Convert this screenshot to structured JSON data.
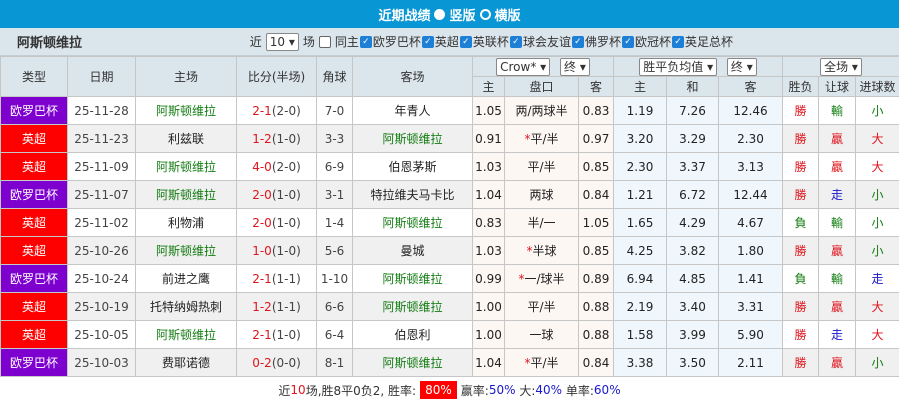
{
  "header": {
    "title": "近期战绩",
    "options": [
      {
        "label": "竖版",
        "selected": true
      },
      {
        "label": "横版",
        "selected": false
      }
    ]
  },
  "filter": {
    "team": "阿斯顿维拉",
    "near_label": "近",
    "count": "10",
    "unit": "场",
    "same_host": "同主",
    "competitions": [
      "欧罗巴杯",
      "英超",
      "英联杯",
      "球会友谊",
      "佛罗杯",
      "欧冠杯",
      "英足总杯"
    ]
  },
  "columns": {
    "type": "类型",
    "date": "日期",
    "home": "主场",
    "score": "比分(半场)",
    "corner": "角球",
    "away": "客场",
    "company": "Crow*",
    "final1": "终",
    "avg": "胜平负均值",
    "final2": "终",
    "scope": "全场",
    "h": "主",
    "line": "盘口",
    "a": "客",
    "h2": "主",
    "d": "和",
    "a2": "客",
    "wl": "胜负",
    "hcp": "让球",
    "goals": "进球数"
  },
  "colors": {
    "欧罗巴杯": "#7e00cf",
    "英超": "#ff0000"
  },
  "rows": [
    {
      "type": "欧罗巴杯",
      "date": "25-11-28",
      "home": "阿斯顿维拉",
      "ft": "2-1",
      "ht": "(2-0)",
      "corner": "7-0",
      "away": "年青人",
      "h": "1.05",
      "line": "两/两球半",
      "star": false,
      "a": "0.83",
      "o1": "1.19",
      "o2": "7.26",
      "o3": "12.46",
      "wl": "勝",
      "hcp": "輸",
      "goals": "小"
    },
    {
      "type": "英超",
      "date": "25-11-23",
      "home": "利兹联",
      "ft": "1-2",
      "ht": "(1-0)",
      "corner": "3-3",
      "away": "阿斯顿维拉",
      "h": "0.91",
      "line": "平/半",
      "star": true,
      "a": "0.97",
      "o1": "3.20",
      "o2": "3.29",
      "o3": "2.30",
      "wl": "勝",
      "hcp": "贏",
      "goals": "大"
    },
    {
      "type": "英超",
      "date": "25-11-09",
      "home": "阿斯顿维拉",
      "ft": "4-0",
      "ht": "(2-0)",
      "corner": "6-9",
      "away": "伯恩茅斯",
      "h": "1.03",
      "line": "平/半",
      "star": false,
      "a": "0.85",
      "o1": "2.30",
      "o2": "3.37",
      "o3": "3.13",
      "wl": "勝",
      "hcp": "贏",
      "goals": "大"
    },
    {
      "type": "欧罗巴杯",
      "date": "25-11-07",
      "home": "阿斯顿维拉",
      "ft": "2-0",
      "ht": "(1-0)",
      "corner": "3-1",
      "away": "特拉维夫马卡比",
      "h": "1.04",
      "line": "两球",
      "star": false,
      "a": "0.84",
      "o1": "1.21",
      "o2": "6.72",
      "o3": "12.44",
      "wl": "勝",
      "hcp": "走",
      "goals": "小"
    },
    {
      "type": "英超",
      "date": "25-11-02",
      "home": "利物浦",
      "ft": "2-0",
      "ht": "(1-0)",
      "corner": "1-4",
      "away": "阿斯顿维拉",
      "h": "0.83",
      "line": "半/一",
      "star": false,
      "a": "1.05",
      "o1": "1.65",
      "o2": "4.29",
      "o3": "4.67",
      "wl": "負",
      "hcp": "輸",
      "goals": "小"
    },
    {
      "type": "英超",
      "date": "25-10-26",
      "home": "阿斯顿维拉",
      "ft": "1-0",
      "ht": "(1-0)",
      "corner": "5-6",
      "away": "曼城",
      "h": "1.03",
      "line": "半球",
      "star": true,
      "a": "0.85",
      "o1": "4.25",
      "o2": "3.82",
      "o3": "1.80",
      "wl": "勝",
      "hcp": "贏",
      "goals": "小"
    },
    {
      "type": "欧罗巴杯",
      "date": "25-10-24",
      "home": "前进之鹰",
      "ft": "2-1",
      "ht": "(1-1)",
      "corner": "1-10",
      "away": "阿斯顿维拉",
      "h": "0.99",
      "line": "一/球半",
      "star": true,
      "a": "0.89",
      "o1": "6.94",
      "o2": "4.85",
      "o3": "1.41",
      "wl": "負",
      "hcp": "輸",
      "goals": "走"
    },
    {
      "type": "英超",
      "date": "25-10-19",
      "home": "托特纳姆热刺",
      "ft": "1-2",
      "ht": "(1-1)",
      "corner": "6-6",
      "away": "阿斯顿维拉",
      "h": "1.00",
      "line": "平/半",
      "star": false,
      "a": "0.88",
      "o1": "2.19",
      "o2": "3.40",
      "o3": "3.31",
      "wl": "勝",
      "hcp": "贏",
      "goals": "大"
    },
    {
      "type": "英超",
      "date": "25-10-05",
      "home": "阿斯顿维拉",
      "ft": "2-1",
      "ht": "(1-0)",
      "corner": "6-4",
      "away": "伯恩利",
      "h": "1.00",
      "line": "一球",
      "star": false,
      "a": "0.88",
      "o1": "1.58",
      "o2": "3.99",
      "o3": "5.90",
      "wl": "勝",
      "hcp": "走",
      "goals": "大"
    },
    {
      "type": "欧罗巴杯",
      "date": "25-10-03",
      "home": "费耶诺德",
      "ft": "0-2",
      "ht": "(0-0)",
      "corner": "8-1",
      "away": "阿斯顿维拉",
      "h": "1.04",
      "line": "平/半",
      "star": true,
      "a": "0.84",
      "o1": "3.38",
      "o2": "3.50",
      "o3": "2.11",
      "wl": "勝",
      "hcp": "贏",
      "goals": "小"
    }
  ],
  "summary": {
    "prefix": "近",
    "count": "10",
    "text": "场,胜8平0负2, 胜率:",
    "win_rate": "80%",
    "ying_label": "赢率:",
    "ying": "50%",
    "big_label": "大:",
    "big": "40%",
    "odd_label": "单率:",
    "odd": "60%"
  }
}
